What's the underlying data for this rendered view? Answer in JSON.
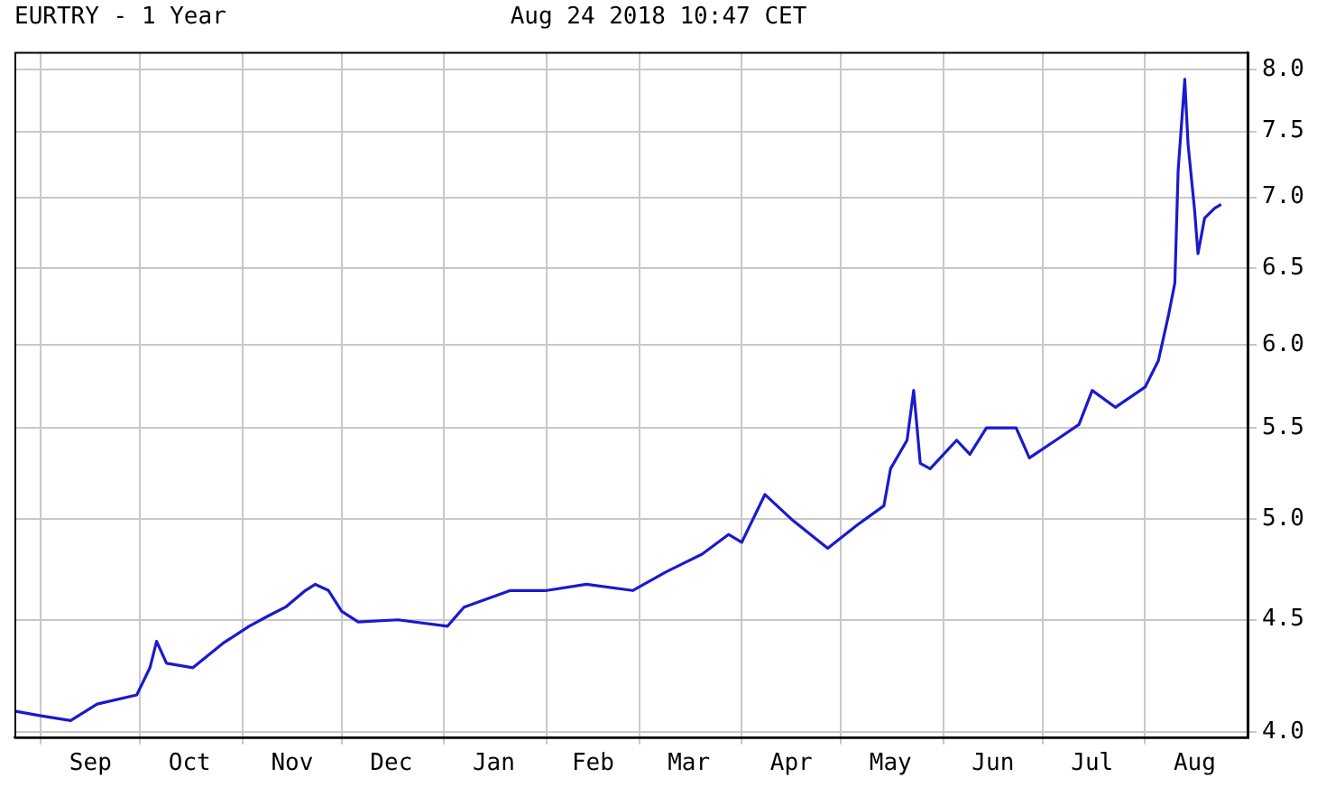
{
  "chart_data": {
    "type": "line",
    "title": "EURTRY - 1 Year",
    "subtitle": "Aug 24 2018 10:47 CET",
    "x": [
      "2017-08-24",
      "2017-09-01",
      "2017-09-10",
      "2017-09-18",
      "2017-09-30",
      "2017-10-04",
      "2017-10-06",
      "2017-10-09",
      "2017-10-17",
      "2017-10-26",
      "2017-11-03",
      "2017-11-09",
      "2017-11-14",
      "2017-11-20",
      "2017-11-23",
      "2017-11-27",
      "2017-12-01",
      "2017-12-06",
      "2017-12-18",
      "2018-01-02",
      "2018-01-07",
      "2018-01-21",
      "2018-02-01",
      "2018-02-13",
      "2018-02-27",
      "2018-03-09",
      "2018-03-20",
      "2018-03-28",
      "2018-04-01",
      "2018-04-08",
      "2018-04-16",
      "2018-04-27",
      "2018-05-06",
      "2018-05-14",
      "2018-05-16",
      "2018-05-21",
      "2018-05-23",
      "2018-05-25",
      "2018-05-28",
      "2018-06-05",
      "2018-06-09",
      "2018-06-14",
      "2018-06-23",
      "2018-06-27",
      "2018-07-05",
      "2018-07-12",
      "2018-07-16",
      "2018-07-23",
      "2018-08-01",
      "2018-08-05",
      "2018-08-08",
      "2018-08-10",
      "2018-08-11",
      "2018-08-13",
      "2018-08-14",
      "2018-08-16",
      "2018-08-17",
      "2018-08-19",
      "2018-08-22",
      "2018-08-24"
    ],
    "series": [
      {
        "color": "#1a1acd",
        "values": [
          4.09,
          4.07,
          4.05,
          4.12,
          4.16,
          4.28,
          4.4,
          4.3,
          4.28,
          4.39,
          4.47,
          4.52,
          4.56,
          4.64,
          4.67,
          4.64,
          4.54,
          4.49,
          4.5,
          4.47,
          4.56,
          4.64,
          4.64,
          4.67,
          4.64,
          4.73,
          4.82,
          4.92,
          4.88,
          5.13,
          5.0,
          4.85,
          4.97,
          5.07,
          5.27,
          5.43,
          5.72,
          5.3,
          5.27,
          5.43,
          5.35,
          5.5,
          5.5,
          5.33,
          5.43,
          5.52,
          5.72,
          5.62,
          5.74,
          5.9,
          6.18,
          6.4,
          7.2,
          7.92,
          7.4,
          6.9,
          6.6,
          6.85,
          6.92,
          6.95
        ]
      }
    ],
    "xlim": [
      "2017-08-24",
      "2018-09-01"
    ],
    "xticks": [
      {
        "value": "2017-09-01",
        "label": null
      },
      {
        "value": "2017-09-16",
        "label": "Sep"
      },
      {
        "value": "2017-10-01",
        "label": null
      },
      {
        "value": "2017-10-16",
        "label": "Oct"
      },
      {
        "value": "2017-11-01",
        "label": null
      },
      {
        "value": "2017-11-16",
        "label": "Nov"
      },
      {
        "value": "2017-12-01",
        "label": null
      },
      {
        "value": "2017-12-16",
        "label": "Dec"
      },
      {
        "value": "2018-01-01",
        "label": null
      },
      {
        "value": "2018-01-16",
        "label": "Jan"
      },
      {
        "value": "2018-02-01",
        "label": null
      },
      {
        "value": "2018-02-15",
        "label": "Feb"
      },
      {
        "value": "2018-03-01",
        "label": null
      },
      {
        "value": "2018-03-16",
        "label": "Mar"
      },
      {
        "value": "2018-04-01",
        "label": null
      },
      {
        "value": "2018-04-16",
        "label": "Apr"
      },
      {
        "value": "2018-05-01",
        "label": null
      },
      {
        "value": "2018-05-16",
        "label": "May"
      },
      {
        "value": "2018-06-01",
        "label": null
      },
      {
        "value": "2018-06-16",
        "label": "Jun"
      },
      {
        "value": "2018-07-01",
        "label": null
      },
      {
        "value": "2018-07-16",
        "label": "Jul"
      },
      {
        "value": "2018-08-01",
        "label": null
      },
      {
        "value": "2018-08-16",
        "label": "Aug"
      }
    ],
    "ylim": [
      3.98,
      8.15
    ],
    "yticks": [
      {
        "value": 4,
        "label": "4.0"
      },
      {
        "value": 4.5,
        "label": "4.5"
      },
      {
        "value": 5,
        "label": "5.0"
      },
      {
        "value": 5.5,
        "label": "5.5"
      },
      {
        "value": 6,
        "label": "6.0"
      },
      {
        "value": 6.5,
        "label": "6.5"
      },
      {
        "value": 7,
        "label": "7.0"
      },
      {
        "value": 7.5,
        "label": "7.5"
      },
      {
        "value": 8,
        "label": "8.0"
      }
    ],
    "log": "y",
    "grid": true,
    "legend": false,
    "marker": "none",
    "line_style": "solid"
  }
}
